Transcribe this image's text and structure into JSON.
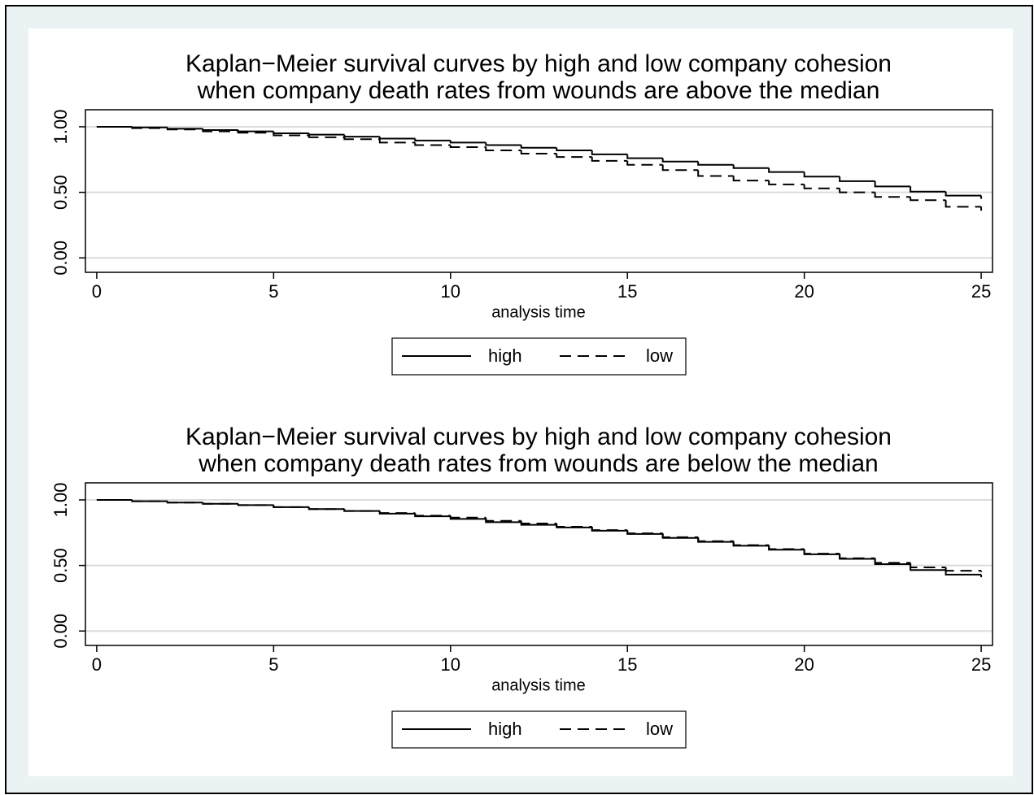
{
  "chart_data": [
    {
      "type": "line",
      "step": true,
      "title": [
        "Kaplan−Meier survival curves by high and low company cohesion",
        "when company death rates from wounds are above the median"
      ],
      "x_label": "analysis time",
      "x": [
        0,
        1,
        2,
        3,
        4,
        5,
        6,
        7,
        8,
        9,
        10,
        11,
        12,
        13,
        14,
        15,
        16,
        17,
        18,
        19,
        20,
        21,
        22,
        23,
        24,
        25
      ],
      "series": [
        {
          "name": "high",
          "color": "#000000",
          "line_style": "solid",
          "values": [
            1.0,
            0.995,
            0.985,
            0.975,
            0.965,
            0.95,
            0.94,
            0.925,
            0.91,
            0.895,
            0.88,
            0.86,
            0.84,
            0.82,
            0.79,
            0.76,
            0.735,
            0.71,
            0.685,
            0.655,
            0.62,
            0.585,
            0.545,
            0.505,
            0.475,
            0.45
          ]
        },
        {
          "name": "low",
          "color": "#000000",
          "line_style": "dashed",
          "values": [
            1.0,
            0.99,
            0.98,
            0.965,
            0.955,
            0.935,
            0.92,
            0.905,
            0.88,
            0.86,
            0.845,
            0.82,
            0.795,
            0.77,
            0.74,
            0.71,
            0.67,
            0.625,
            0.59,
            0.56,
            0.53,
            0.5,
            0.465,
            0.44,
            0.39,
            0.36
          ]
        }
      ],
      "xlim": [
        -0.32,
        25.32
      ],
      "xticks": [
        0,
        5,
        10,
        15,
        20,
        25
      ],
      "ylim": [
        -0.11,
        1.13
      ],
      "yticks": [
        {
          "value": 0,
          "label": "0.00"
        },
        {
          "value": 0.5,
          "label": "0.50"
        },
        {
          "value": 1,
          "label": "1.00"
        }
      ],
      "grid": true,
      "legend": "bottom"
    },
    {
      "type": "line",
      "step": true,
      "title": [
        "Kaplan−Meier survival curves by high and low company cohesion",
        "when company death rates from wounds are below the median"
      ],
      "x_label": "analysis time",
      "x": [
        0,
        1,
        2,
        3,
        4,
        5,
        6,
        7,
        8,
        9,
        10,
        11,
        12,
        13,
        14,
        15,
        16,
        17,
        18,
        19,
        20,
        21,
        22,
        23,
        24,
        25
      ],
      "series": [
        {
          "name": "high",
          "color": "#000000",
          "line_style": "solid",
          "values": [
            1.0,
            0.99,
            0.98,
            0.97,
            0.96,
            0.945,
            0.93,
            0.915,
            0.895,
            0.875,
            0.855,
            0.83,
            0.81,
            0.79,
            0.765,
            0.74,
            0.71,
            0.68,
            0.65,
            0.62,
            0.585,
            0.55,
            0.51,
            0.465,
            0.43,
            0.41
          ]
        },
        {
          "name": "low",
          "color": "#000000",
          "line_style": "dashed",
          "values": [
            1.0,
            0.99,
            0.98,
            0.97,
            0.96,
            0.945,
            0.93,
            0.915,
            0.9,
            0.88,
            0.865,
            0.84,
            0.82,
            0.795,
            0.77,
            0.745,
            0.715,
            0.685,
            0.655,
            0.625,
            0.59,
            0.555,
            0.52,
            0.485,
            0.46,
            0.45
          ]
        }
      ],
      "xlim": [
        -0.32,
        25.32
      ],
      "xticks": [
        0,
        5,
        10,
        15,
        20,
        25
      ],
      "ylim": [
        -0.11,
        1.13
      ],
      "yticks": [
        {
          "value": 0,
          "label": "0.00"
        },
        {
          "value": 0.5,
          "label": "0.50"
        },
        {
          "value": 1,
          "label": "1.00"
        }
      ],
      "grid": true,
      "legend": "bottom"
    }
  ]
}
